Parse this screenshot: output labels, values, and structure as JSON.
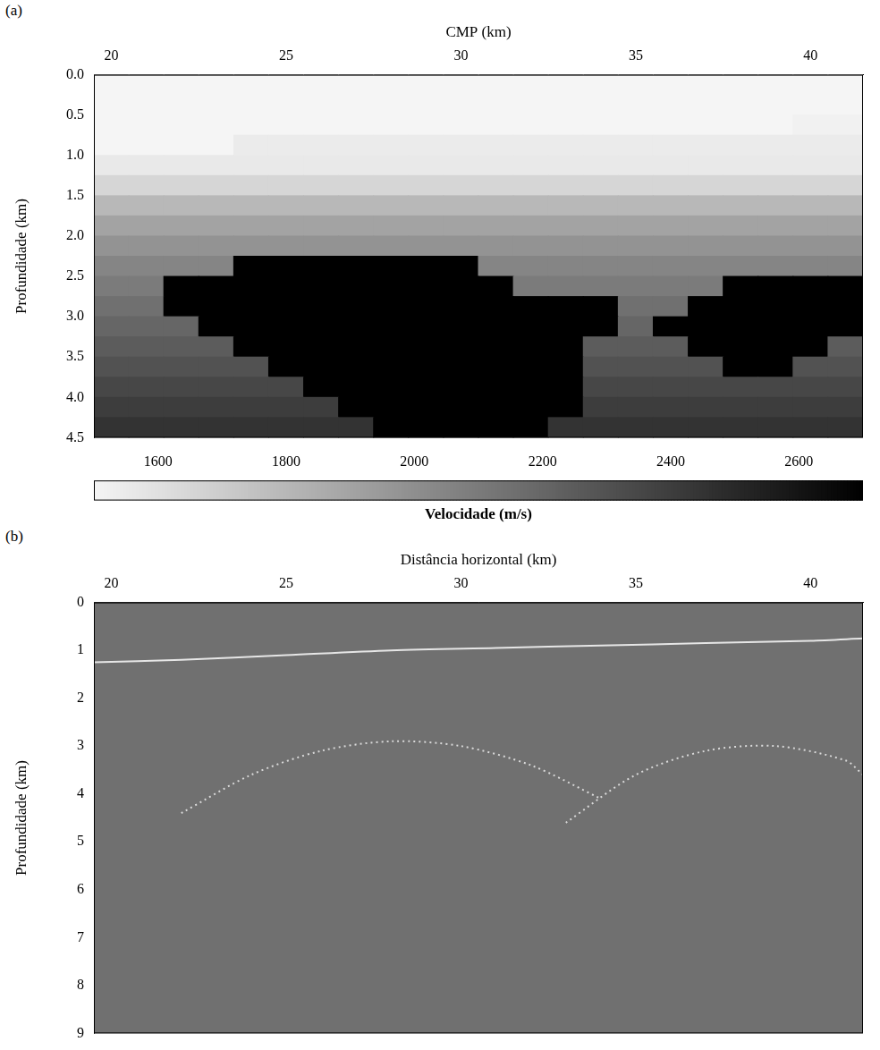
{
  "chart_data": [
    {
      "panel": "(a)",
      "type": "heatmap",
      "x_label": "CMP (km)",
      "y_label": "Profundidade (km)",
      "xlim": [
        19.5,
        41.5
      ],
      "xticks": [
        20,
        25,
        30,
        35,
        40
      ],
      "ylim": [
        0,
        4.5
      ],
      "yticks": [
        {
          "value": 0,
          "label": "0.0"
        },
        0.5,
        {
          "value": 1,
          "label": "1.0"
        },
        1.5,
        {
          "value": 2,
          "label": "2.0"
        },
        2.5,
        {
          "value": 3,
          "label": "3.0"
        },
        3.5,
        {
          "value": 4,
          "label": "4.0"
        },
        4.5
      ],
      "grid": false,
      "cells": {
        "x": [
          20,
          21,
          22,
          23,
          24,
          25,
          26,
          27,
          28,
          29,
          30,
          31,
          32,
          33,
          34,
          35,
          36,
          37,
          38,
          39,
          40,
          41
        ],
        "y": [
          0.125,
          0.375,
          0.625,
          0.875,
          1.125,
          1.375,
          1.625,
          1.875,
          2.125,
          2.375,
          2.625,
          2.875,
          3.125,
          3.375,
          3.625,
          3.875,
          4.125,
          4.375
        ],
        "values": [
          [
            1500,
            1500,
            1500,
            1500,
            1500,
            1500,
            1500,
            1500,
            1500,
            1500,
            1500,
            1500,
            1500,
            1500,
            1500,
            1500,
            1500,
            1500,
            1500,
            1500,
            1500,
            1500
          ],
          [
            1500,
            1500,
            1500,
            1500,
            1500,
            1500,
            1500,
            1500,
            1500,
            1500,
            1500,
            1500,
            1500,
            1500,
            1500,
            1500,
            1500,
            1500,
            1500,
            1500,
            1500,
            1500
          ],
          [
            1500,
            1500,
            1500,
            1500,
            1500,
            1500,
            1500,
            1500,
            1500,
            1500,
            1500,
            1500,
            1500,
            1500,
            1500,
            1500,
            1500,
            1500,
            1500,
            1500,
            1520,
            1520
          ],
          [
            1500,
            1500,
            1500,
            1500,
            1550,
            1550,
            1550,
            1550,
            1550,
            1550,
            1550,
            1550,
            1550,
            1550,
            1550,
            1550,
            1550,
            1550,
            1550,
            1550,
            1550,
            1550
          ],
          [
            1560,
            1560,
            1560,
            1560,
            1560,
            1560,
            1560,
            1560,
            1560,
            1560,
            1560,
            1560,
            1560,
            1560,
            1560,
            1560,
            1560,
            1560,
            1560,
            1560,
            1560,
            1560
          ],
          [
            1650,
            1650,
            1650,
            1650,
            1650,
            1650,
            1650,
            1650,
            1650,
            1650,
            1650,
            1650,
            1650,
            1650,
            1650,
            1650,
            1650,
            1650,
            1650,
            1650,
            1650,
            1650
          ],
          [
            1800,
            1800,
            1800,
            1800,
            1800,
            1800,
            1800,
            1800,
            1800,
            1800,
            1800,
            1800,
            1800,
            1800,
            1800,
            1800,
            1800,
            1800,
            1800,
            1800,
            1800,
            1800
          ],
          [
            1900,
            1900,
            1900,
            1900,
            1900,
            1900,
            1900,
            1900,
            1900,
            1900,
            1900,
            1900,
            1900,
            1900,
            1900,
            1900,
            1900,
            1900,
            1900,
            1900,
            1900,
            1900
          ],
          [
            1980,
            1980,
            1980,
            1980,
            1980,
            1980,
            1980,
            1980,
            1980,
            1980,
            1980,
            1980,
            1980,
            1980,
            1980,
            1980,
            1980,
            1980,
            1980,
            1980,
            1980,
            1980
          ],
          [
            2050,
            2050,
            2050,
            2050,
            2700,
            2700,
            2700,
            2700,
            2700,
            2700,
            2700,
            2050,
            2050,
            2050,
            2050,
            2050,
            2050,
            2050,
            2050,
            2050,
            2050,
            2050
          ],
          [
            2100,
            2100,
            2700,
            2700,
            2700,
            2700,
            2700,
            2700,
            2700,
            2700,
            2700,
            2700,
            2100,
            2100,
            2100,
            2100,
            2100,
            2100,
            2700,
            2700,
            2700,
            2700
          ],
          [
            2150,
            2150,
            2700,
            2700,
            2700,
            2700,
            2700,
            2700,
            2700,
            2700,
            2700,
            2700,
            2700,
            2700,
            2700,
            2150,
            2150,
            2700,
            2700,
            2700,
            2700,
            2700
          ],
          [
            2200,
            2200,
            2200,
            2700,
            2700,
            2700,
            2700,
            2700,
            2700,
            2700,
            2700,
            2700,
            2700,
            2700,
            2700,
            2200,
            2700,
            2700,
            2700,
            2700,
            2700,
            2700
          ],
          [
            2250,
            2250,
            2250,
            2250,
            2700,
            2700,
            2700,
            2700,
            2700,
            2700,
            2700,
            2700,
            2700,
            2700,
            2250,
            2250,
            2250,
            2700,
            2700,
            2700,
            2700,
            2250
          ],
          [
            2300,
            2300,
            2300,
            2300,
            2300,
            2700,
            2700,
            2700,
            2700,
            2700,
            2700,
            2700,
            2700,
            2700,
            2300,
            2300,
            2300,
            2300,
            2700,
            2700,
            2300,
            2300
          ],
          [
            2350,
            2350,
            2350,
            2350,
            2350,
            2350,
            2700,
            2700,
            2700,
            2700,
            2700,
            2700,
            2700,
            2700,
            2350,
            2350,
            2350,
            2350,
            2350,
            2350,
            2350,
            2350
          ],
          [
            2400,
            2400,
            2400,
            2400,
            2400,
            2400,
            2400,
            2700,
            2700,
            2700,
            2700,
            2700,
            2700,
            2700,
            2400,
            2400,
            2400,
            2400,
            2400,
            2400,
            2400,
            2400
          ],
          [
            2450,
            2450,
            2450,
            2450,
            2450,
            2450,
            2450,
            2450,
            2700,
            2700,
            2700,
            2700,
            2700,
            2450,
            2450,
            2450,
            2450,
            2450,
            2450,
            2450,
            2450,
            2450
          ]
        ]
      },
      "colorbar": {
        "range": [
          1500,
          2700
        ],
        "ticks": [
          1600,
          1800,
          2000,
          2200,
          2400,
          2600
        ],
        "label": "Velocidade (m/s)"
      }
    },
    {
      "panel": "(b)",
      "type": "line",
      "x_label": "Distância horizontal (km)",
      "y_label": "Profundidade (km)",
      "xlim": [
        19.5,
        41.5
      ],
      "xticks": [
        20,
        25,
        30,
        35,
        40
      ],
      "ylim": [
        0,
        9
      ],
      "yticks": [
        0,
        1,
        2,
        3,
        4,
        5,
        6,
        7,
        8,
        9
      ],
      "grid": false,
      "series": [
        {
          "color": "#e6e6e6",
          "line_style": "solid",
          "x": [
            19.5,
            22,
            25,
            28,
            31,
            34,
            37,
            40,
            41.5
          ],
          "values": [
            1.25,
            1.2,
            1.1,
            1.0,
            0.95,
            0.9,
            0.85,
            0.8,
            0.75
          ]
        },
        {
          "color": "#d9d9d9",
          "line_style": "dotted",
          "x": [
            22,
            24,
            26,
            28,
            30,
            32,
            34
          ],
          "values": [
            4.4,
            3.6,
            3.1,
            2.9,
            3.0,
            3.4,
            4.1
          ]
        },
        {
          "color": "#d9d9d9",
          "line_style": "dotted",
          "x": [
            33,
            35,
            37,
            39,
            41,
            41.5
          ],
          "values": [
            4.6,
            3.6,
            3.1,
            3.0,
            3.3,
            3.6
          ]
        }
      ]
    }
  ]
}
